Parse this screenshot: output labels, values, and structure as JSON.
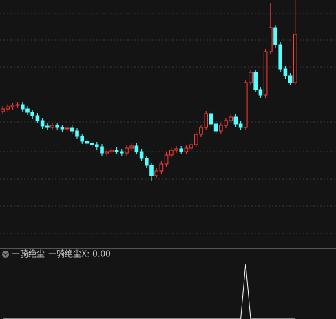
{
  "chart_data": {
    "type": "candlestick",
    "ylim": [
      0,
      360
    ],
    "up_color": "#ff3b3b",
    "down_color": "#54ffff",
    "open": [
      198,
      202,
      205,
      207,
      208,
      202,
      197,
      192,
      185,
      177,
      175,
      178,
      175,
      173,
      174,
      170,
      162,
      155,
      152,
      150,
      147,
      138,
      140,
      142,
      140,
      138,
      145,
      148,
      140,
      130,
      120,
      105,
      112,
      122,
      135,
      142,
      144,
      140,
      145,
      150,
      165,
      175,
      195,
      180,
      170,
      178,
      185,
      190,
      180,
      175,
      240,
      255,
      230,
      222,
      285,
      320,
      295,
      260,
      250,
      240
    ],
    "high": [
      206,
      209,
      211,
      212,
      212,
      206,
      201,
      196,
      189,
      181,
      182,
      182,
      179,
      178,
      178,
      174,
      166,
      159,
      156,
      154,
      151,
      144,
      146,
      146,
      144,
      149,
      152,
      152,
      144,
      134,
      124,
      116,
      126,
      139,
      146,
      148,
      148,
      149,
      154,
      169,
      179,
      199,
      199,
      184,
      182,
      189,
      194,
      194,
      184,
      244,
      259,
      259,
      234,
      289,
      355,
      324,
      299,
      264,
      254,
      360
    ],
    "low": [
      194,
      198,
      201,
      203,
      198,
      193,
      188,
      181,
      173,
      171,
      171,
      171,
      169,
      169,
      166,
      158,
      151,
      148,
      146,
      143,
      134,
      134,
      136,
      136,
      134,
      134,
      141,
      136,
      126,
      116,
      98,
      101,
      108,
      118,
      131,
      138,
      136,
      136,
      141,
      146,
      161,
      171,
      176,
      166,
      166,
      174,
      181,
      176,
      171,
      171,
      236,
      226,
      218,
      218,
      281,
      291,
      256,
      246,
      236,
      236
    ],
    "close": [
      202,
      205,
      207,
      208,
      202,
      197,
      192,
      185,
      177,
      175,
      178,
      175,
      173,
      174,
      170,
      162,
      155,
      152,
      150,
      147,
      138,
      140,
      142,
      140,
      138,
      145,
      148,
      140,
      130,
      120,
      105,
      112,
      122,
      135,
      142,
      144,
      140,
      145,
      150,
      165,
      175,
      195,
      180,
      170,
      178,
      185,
      190,
      180,
      175,
      240,
      255,
      230,
      222,
      285,
      320,
      295,
      260,
      250,
      240,
      310
    ],
    "indicator": {
      "name": "一骑绝尘",
      "label": "一骑绝尘X: 0.00",
      "color": "#ffffff",
      "ylim": [
        0,
        1.1
      ],
      "values": [
        0,
        0,
        0,
        0,
        0,
        0,
        0,
        0,
        0,
        0,
        0,
        0,
        0,
        0,
        0,
        0,
        0,
        0,
        0,
        0,
        0,
        0,
        0,
        0,
        0,
        0,
        0,
        0,
        0,
        0,
        0,
        0,
        0,
        0,
        0,
        0,
        0,
        0,
        0,
        0,
        0,
        0,
        0,
        0,
        0,
        0,
        0,
        0,
        0,
        1,
        0,
        0,
        0,
        0,
        0,
        0,
        0,
        0,
        0,
        0
      ]
    }
  }
}
